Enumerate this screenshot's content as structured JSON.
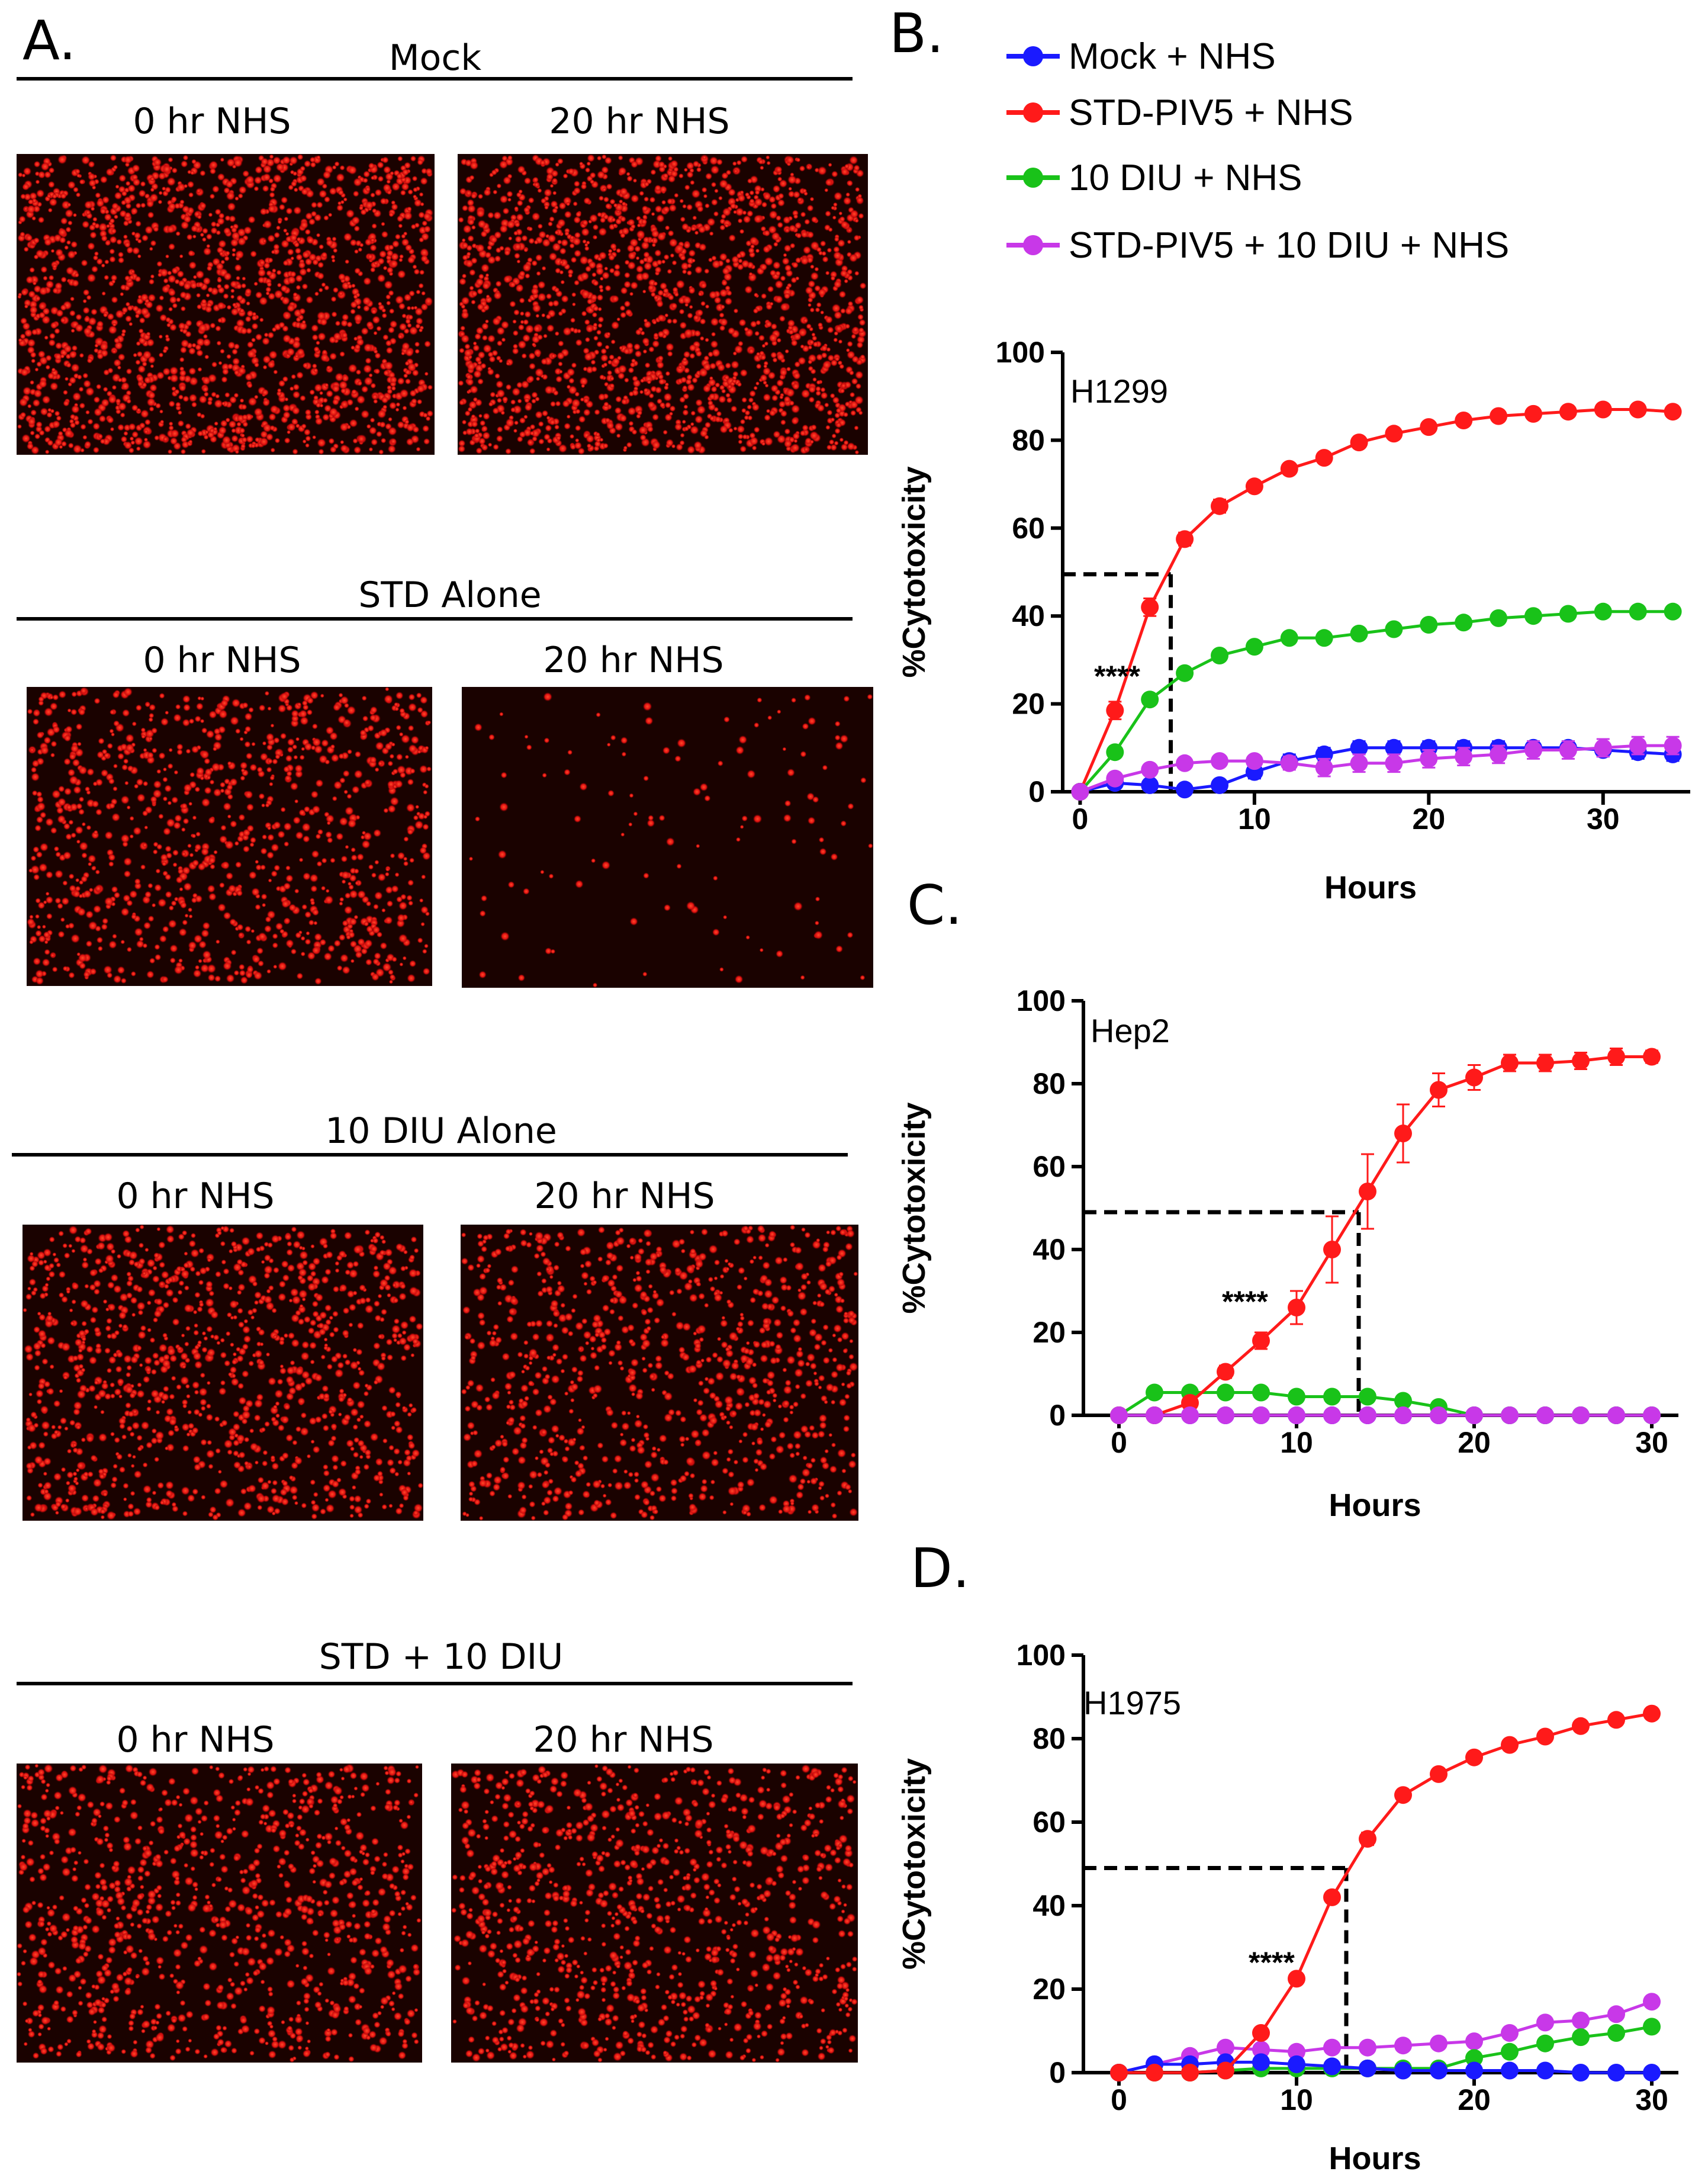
{
  "panel_letters": {
    "a": "A.",
    "b": "B.",
    "c": "C.",
    "d": "D."
  },
  "image_groups": [
    {
      "title": "Mock",
      "left_label": "0 hr NHS",
      "right_label": "20 hr NHS",
      "left_density": 1800,
      "right_density": 1800
    },
    {
      "title": "STD Alone",
      "left_label": "0 hr NHS",
      "right_label": "20 hr NHS",
      "left_density": 1050,
      "right_density": 120
    },
    {
      "title": "10 DIU Alone",
      "left_label": "0 hr NHS",
      "right_label": "20 hr NHS",
      "left_density": 1150,
      "right_density": 950
    },
    {
      "title": "STD + 10 DIU",
      "left_label": "0 hr NHS",
      "right_label": "20 hr NHS",
      "left_density": 1000,
      "right_density": 1000
    }
  ],
  "legend": [
    {
      "label": "Mock + NHS",
      "color": "#1a1aff"
    },
    {
      "label": "STD-PIV5 + NHS",
      "color": "#ff1a1a"
    },
    {
      "label": "10 DIU + NHS",
      "color": "#19c219"
    },
    {
      "label": "STD-PIV5 + 10 DIU + NHS",
      "color": "#c838e8"
    }
  ],
  "chart_data": [
    {
      "type": "line",
      "cell_line": "H1299",
      "xlabel": "Hours",
      "ylabel": "%Cytotoxicity",
      "xlim": [
        -1,
        35
      ],
      "ylim": [
        0,
        100
      ],
      "xticks": [
        0,
        10,
        20,
        30
      ],
      "yticks": [
        0,
        20,
        40,
        60,
        80,
        100
      ],
      "x": [
        0,
        2,
        4,
        6,
        8,
        10,
        12,
        14,
        16,
        18,
        20,
        22,
        24,
        26,
        28,
        30,
        32,
        34
      ],
      "series": [
        {
          "name": "Mock + NHS",
          "color": "#1a1aff",
          "values": [
            0,
            2,
            1.5,
            0.5,
            1.5,
            4.5,
            7,
            8.5,
            10,
            10,
            10,
            10,
            10,
            10,
            10,
            9.5,
            9,
            8.5
          ],
          "err": [
            0,
            1,
            1,
            0.5,
            1,
            1.5,
            1.5,
            1.5,
            1.5,
            1.5,
            1.5,
            1.5,
            1.5,
            1.5,
            1.5,
            1.5,
            1.5,
            1.5
          ]
        },
        {
          "name": "STD-PIV5 + NHS",
          "color": "#ff1a1a",
          "values": [
            0,
            18.5,
            42,
            57.5,
            65,
            69.5,
            73.5,
            76,
            79.5,
            81.5,
            83,
            84.5,
            85.5,
            86,
            86.5,
            87,
            87,
            86.5
          ],
          "err": [
            0,
            2,
            2,
            1.5,
            1.5,
            1,
            1,
            1,
            1,
            1,
            1,
            1,
            1,
            1,
            1,
            1,
            1,
            1
          ]
        },
        {
          "name": "10 DIU + NHS",
          "color": "#19c219",
          "values": [
            0,
            9,
            21,
            27,
            31,
            33,
            35,
            35,
            36,
            37,
            38,
            38.5,
            39.5,
            40,
            40.5,
            41,
            41,
            41
          ],
          "err": [
            0,
            1,
            1,
            1,
            1,
            1,
            1,
            1,
            1,
            1,
            1,
            1,
            1,
            1,
            1,
            1,
            1,
            1
          ]
        },
        {
          "name": "STD-PIV5 + 10 DIU + NHS",
          "color": "#c838e8",
          "values": [
            0,
            3,
            5,
            6.5,
            7,
            7,
            6.5,
            5.5,
            6.5,
            6.5,
            7.5,
            8,
            8.5,
            9.5,
            9.5,
            10,
            10.5,
            10.5
          ],
          "err": [
            0,
            1,
            1,
            1,
            1,
            1,
            1.5,
            2,
            2,
            2,
            2,
            2,
            2,
            2,
            2,
            2,
            2,
            2
          ]
        }
      ],
      "threshold": {
        "y": 49.5,
        "x": 5.2
      },
      "significance_label": "****",
      "significance_at": {
        "x": 0.8,
        "y": 24
      }
    },
    {
      "type": "line",
      "cell_line": "Hep2",
      "xlabel": "Hours",
      "ylabel": "%Cytotoxicity",
      "xlim": [
        -2,
        31.5
      ],
      "ylim": [
        0,
        100
      ],
      "xticks": [
        0,
        10,
        20,
        30
      ],
      "yticks": [
        0,
        20,
        40,
        60,
        80,
        100
      ],
      "x": [
        0,
        2,
        4,
        6,
        8,
        10,
        12,
        14,
        16,
        18,
        20,
        22,
        24,
        26,
        28,
        30
      ],
      "series": [
        {
          "name": "Mock + NHS",
          "color": "#1a1aff",
          "values": [
            0,
            0,
            0,
            0,
            0,
            0,
            0,
            0,
            0,
            0,
            0,
            0,
            0,
            0,
            0,
            0
          ],
          "err": [
            0,
            0,
            0,
            0,
            0,
            0,
            0,
            0,
            0,
            0,
            0,
            0,
            0,
            0,
            0,
            0
          ]
        },
        {
          "name": "10 DIU + NHS",
          "color": "#19c219",
          "values": [
            0,
            5.5,
            5.5,
            5.5,
            5.5,
            4.5,
            4.5,
            4.5,
            3.5,
            2,
            0,
            0,
            0,
            0,
            0,
            0
          ],
          "err": [
            0,
            0.5,
            0.5,
            0.5,
            0.5,
            0.5,
            0.5,
            0.5,
            0.5,
            0.5,
            0,
            0,
            0,
            0,
            0,
            0
          ]
        },
        {
          "name": "STD-PIV5 + NHS",
          "color": "#ff1a1a",
          "values": [
            0,
            0,
            3,
            10.5,
            18,
            26,
            40,
            54,
            68,
            78.5,
            81.5,
            85,
            85,
            85.5,
            86.5,
            86.5
          ],
          "err": [
            0,
            0,
            1,
            1.5,
            2,
            4,
            8,
            9,
            7,
            4,
            3,
            2,
            2,
            2,
            2,
            1.5
          ]
        },
        {
          "name": "STD-PIV5 + 10 DIU + NHS",
          "color": "#c838e8",
          "values": [
            0,
            0,
            0,
            0,
            0,
            0,
            0,
            0,
            0,
            0,
            0,
            0,
            0,
            0,
            0,
            0
          ],
          "err": [
            0,
            0,
            0,
            0,
            0,
            0,
            0,
            0,
            0,
            0,
            0,
            0,
            0,
            0,
            0,
            0
          ]
        }
      ],
      "threshold": {
        "y": 49,
        "x": 13.5
      },
      "significance_label": "****",
      "significance_at": {
        "x": 5.8,
        "y": 25
      }
    },
    {
      "type": "line",
      "cell_line": "H1975",
      "xlabel": "Hours",
      "ylabel": "%Cytotoxicity",
      "xlim": [
        -2,
        31.5
      ],
      "ylim": [
        0,
        100
      ],
      "xticks": [
        0,
        10,
        20,
        30
      ],
      "yticks": [
        0,
        20,
        40,
        60,
        80,
        100
      ],
      "x": [
        0,
        2,
        4,
        6,
        8,
        10,
        12,
        14,
        16,
        18,
        20,
        22,
        24,
        26,
        28,
        30
      ],
      "series": [
        {
          "name": "STD-PIV5 + 10 DIU + NHS",
          "color": "#c838e8",
          "values": [
            0,
            2,
            4,
            6,
            5.5,
            5,
            6,
            6,
            6.5,
            7,
            7.5,
            9.5,
            12,
            12.5,
            14,
            17
          ],
          "err": [
            0,
            0.5,
            0.5,
            0.5,
            0.5,
            0.5,
            0.5,
            0.5,
            0.5,
            0.5,
            1,
            1,
            1,
            1,
            1,
            1
          ]
        },
        {
          "name": "10 DIU + NHS",
          "color": "#19c219",
          "values": [
            0,
            0,
            0,
            0.5,
            1,
            1,
            1,
            1,
            1,
            1,
            3.5,
            5,
            7,
            8.5,
            9.5,
            11
          ],
          "err": [
            0,
            0,
            0,
            0,
            0,
            0,
            0,
            0,
            0,
            0,
            0.5,
            0.5,
            0.5,
            0.5,
            0.5,
            0.5
          ]
        },
        {
          "name": "Mock + NHS",
          "color": "#1a1aff",
          "values": [
            0,
            2,
            2,
            2.5,
            2.5,
            2,
            1.5,
            1,
            0.5,
            0.5,
            0.5,
            0.5,
            0.5,
            0,
            0,
            0
          ],
          "err": [
            0,
            0.5,
            0.5,
            0.5,
            0.5,
            0.5,
            0.5,
            0.5,
            0.5,
            0.5,
            0.5,
            0.5,
            0.5,
            0,
            0,
            0
          ]
        },
        {
          "name": "STD-PIV5 + NHS",
          "color": "#ff1a1a",
          "values": [
            0,
            0,
            0,
            0.5,
            9.5,
            22.5,
            42,
            56,
            66.5,
            71.5,
            75.5,
            78.5,
            80.5,
            83,
            84.5,
            86
          ],
          "err": [
            0,
            0,
            0,
            0,
            0.5,
            0.5,
            1,
            1.5,
            1,
            1,
            1,
            1,
            1,
            1,
            1,
            1
          ]
        }
      ],
      "threshold": {
        "y": 49,
        "x": 12.8
      },
      "significance_label": "****",
      "significance_at": {
        "x": 7.3,
        "y": 24
      }
    }
  ]
}
